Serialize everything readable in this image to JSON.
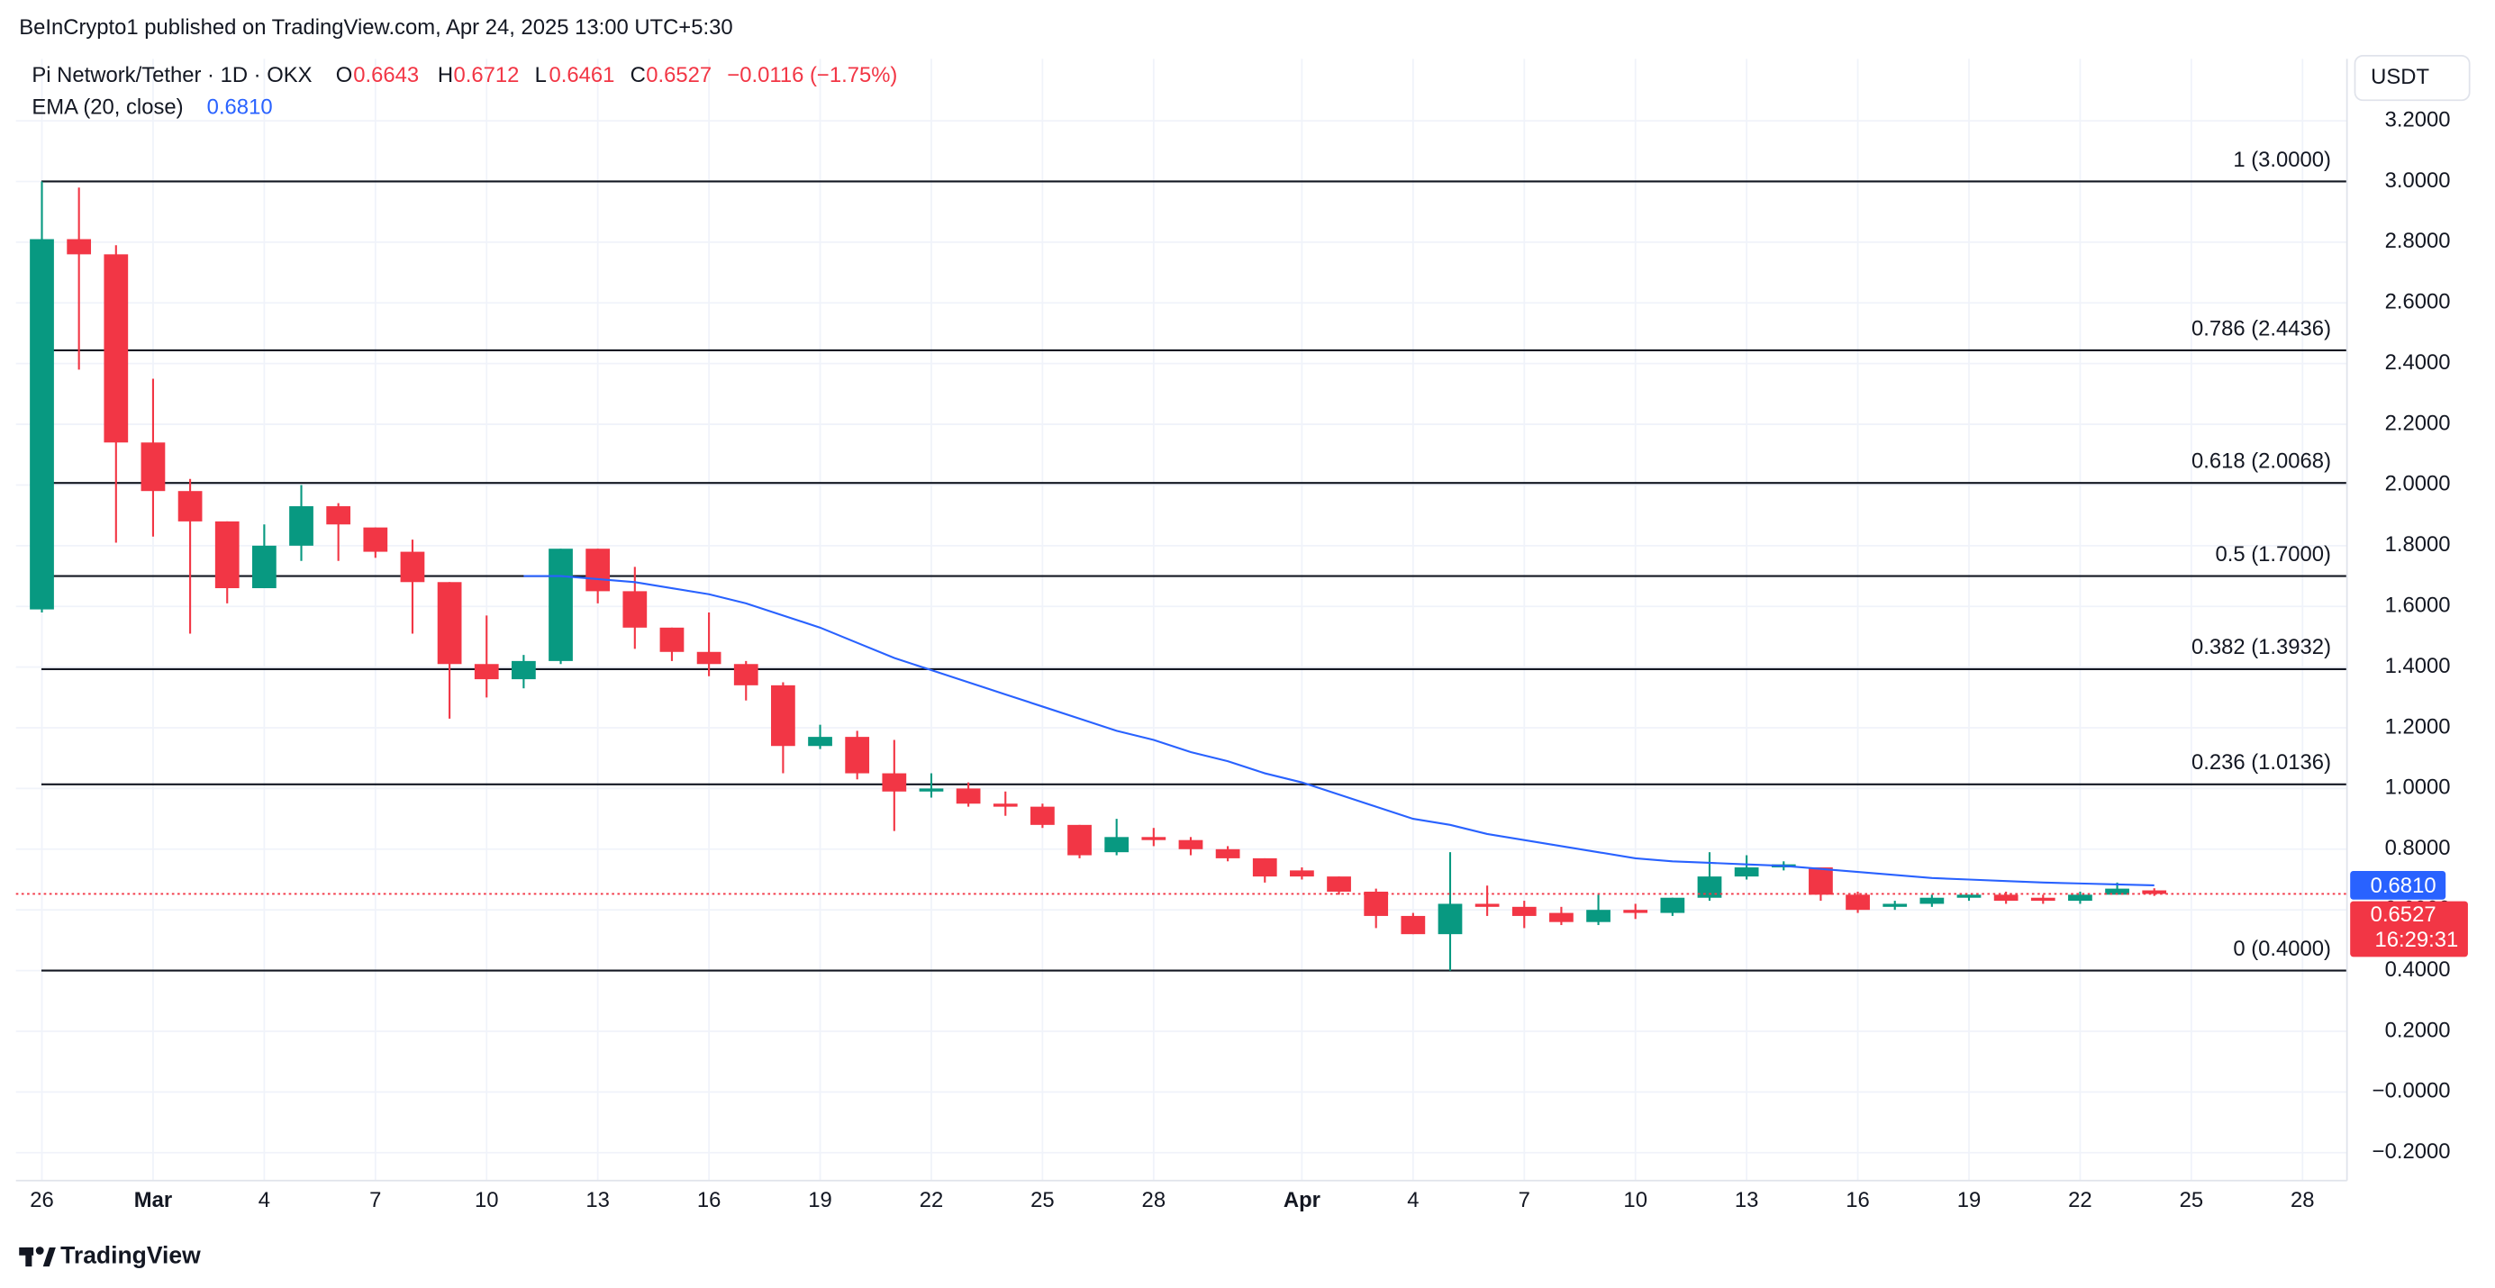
{
  "header": {
    "published": "BeInCrypto1 published on TradingView.com, Apr 24, 2025 13:00 UTC+5:30",
    "symbol": "Pi Network/Tether · 1D · OKX",
    "open_key": "O",
    "open": "0.6643",
    "high_key": "H",
    "high": "0.6712",
    "low_key": "L",
    "low": "0.6461",
    "close_key": "C",
    "close": "0.6527",
    "change": "−0.0116 (−1.75%)",
    "ema_value": "0.6810",
    "currency": "USDT",
    "countdown": "16:29:31",
    "footer": "TradingView"
  },
  "chart_data": {
    "type": "candlestick",
    "x": [
      0,
      1,
      2,
      3,
      4,
      5,
      6,
      7,
      8,
      9,
      10,
      11,
      12,
      13,
      14,
      15,
      16,
      17,
      18,
      19,
      20,
      21,
      22,
      23,
      24,
      25,
      26,
      27,
      28,
      29,
      30,
      31,
      32,
      33,
      34,
      35,
      36,
      37,
      38,
      39,
      40,
      41,
      42,
      43,
      44,
      45,
      46,
      47,
      48,
      49,
      50,
      51,
      52,
      53,
      54,
      55,
      56,
      57
    ],
    "xlim": [
      -0.7,
      62.2
    ],
    "xticks": [
      {
        "value": 0,
        "label": "26"
      },
      {
        "value": 3,
        "label": "Mar"
      },
      {
        "value": 6,
        "label": "4"
      },
      {
        "value": 9,
        "label": "7"
      },
      {
        "value": 12,
        "label": "10"
      },
      {
        "value": 15,
        "label": "13"
      },
      {
        "value": 18,
        "label": "16"
      },
      {
        "value": 21,
        "label": "19"
      },
      {
        "value": 24,
        "label": "22"
      },
      {
        "value": 27,
        "label": "25"
      },
      {
        "value": 30,
        "label": "28"
      },
      {
        "value": 34,
        "label": "Apr"
      },
      {
        "value": 37,
        "label": "4"
      },
      {
        "value": 40,
        "label": "7"
      },
      {
        "value": 43,
        "label": "10"
      },
      {
        "value": 46,
        "label": "13"
      },
      {
        "value": 49,
        "label": "16"
      },
      {
        "value": 52,
        "label": "19"
      },
      {
        "value": 55,
        "label": "22"
      },
      {
        "value": 58,
        "label": "25"
      },
      {
        "value": 61,
        "label": "28"
      }
    ],
    "ylim": [
      -0.292,
      3.404
    ],
    "yticks": [
      {
        "value": 3.2,
        "label": "3.2000"
      },
      {
        "value": 3.0,
        "label": "3.0000"
      },
      {
        "value": 2.8,
        "label": "2.8000"
      },
      {
        "value": 2.6,
        "label": "2.6000"
      },
      {
        "value": 2.4,
        "label": "2.4000"
      },
      {
        "value": 2.2,
        "label": "2.2000"
      },
      {
        "value": 2.0,
        "label": "2.0000"
      },
      {
        "value": 1.8,
        "label": "1.8000"
      },
      {
        "value": 1.6,
        "label": "1.6000"
      },
      {
        "value": 1.4,
        "label": "1.4000"
      },
      {
        "value": 1.2,
        "label": "1.2000"
      },
      {
        "value": 1.0,
        "label": "1.0000"
      },
      {
        "value": 0.8,
        "label": "0.8000"
      },
      {
        "value": 0.6,
        "label": "0.6000"
      },
      {
        "value": 0.4,
        "label": "0.4000"
      },
      {
        "value": 0.2,
        "label": "0.2000"
      },
      {
        "value": 0,
        "label": "−0.0000"
      },
      {
        "value": -0.2,
        "label": "−0.2000"
      }
    ],
    "grid": true,
    "up_color": "#089981",
    "down_color": "#f23645",
    "open": [
      1.59,
      2.81,
      2.76,
      2.14,
      1.98,
      1.88,
      1.66,
      1.8,
      1.93,
      1.86,
      1.78,
      1.68,
      1.41,
      1.36,
      1.42,
      1.79,
      1.65,
      1.53,
      1.45,
      1.41,
      1.34,
      1.14,
      1.17,
      1.05,
      0.99,
      1.0,
      0.95,
      0.94,
      0.88,
      0.79,
      0.84,
      0.83,
      0.8,
      0.77,
      0.73,
      0.71,
      0.66,
      0.58,
      0.52,
      0.62,
      0.61,
      0.59,
      0.56,
      0.6,
      0.59,
      0.64,
      0.71,
      0.74,
      0.74,
      0.65,
      0.61,
      0.62,
      0.64,
      0.65,
      0.64,
      0.63,
      0.65,
      0.6643
    ],
    "high": [
      3.0,
      2.98,
      2.79,
      2.35,
      2.02,
      1.88,
      1.87,
      2.0,
      1.94,
      1.86,
      1.82,
      1.68,
      1.57,
      1.44,
      1.79,
      1.79,
      1.73,
      1.53,
      1.58,
      1.42,
      1.35,
      1.21,
      1.19,
      1.16,
      1.05,
      1.02,
      0.99,
      0.95,
      0.88,
      0.9,
      0.87,
      0.84,
      0.81,
      0.77,
      0.74,
      0.71,
      0.67,
      0.59,
      0.79,
      0.68,
      0.63,
      0.61,
      0.65,
      0.62,
      0.64,
      0.79,
      0.78,
      0.76,
      0.74,
      0.66,
      0.63,
      0.65,
      0.65,
      0.66,
      0.65,
      0.66,
      0.69,
      0.6712
    ],
    "low": [
      1.58,
      2.38,
      1.81,
      1.83,
      1.51,
      1.61,
      1.66,
      1.75,
      1.75,
      1.76,
      1.51,
      1.23,
      1.3,
      1.33,
      1.41,
      1.61,
      1.46,
      1.42,
      1.37,
      1.29,
      1.05,
      1.13,
      1.03,
      0.86,
      0.97,
      0.94,
      0.91,
      0.87,
      0.77,
      0.78,
      0.81,
      0.78,
      0.76,
      0.69,
      0.7,
      0.65,
      0.54,
      0.52,
      0.4,
      0.58,
      0.54,
      0.55,
      0.55,
      0.57,
      0.58,
      0.63,
      0.7,
      0.73,
      0.63,
      0.59,
      0.6,
      0.61,
      0.63,
      0.62,
      0.62,
      0.62,
      0.65,
      0.6461
    ],
    "close": [
      2.81,
      2.76,
      2.14,
      1.98,
      1.88,
      1.66,
      1.8,
      1.93,
      1.87,
      1.78,
      1.68,
      1.41,
      1.36,
      1.42,
      1.79,
      1.65,
      1.53,
      1.45,
      1.41,
      1.34,
      1.14,
      1.17,
      1.05,
      0.99,
      1.0,
      0.95,
      0.94,
      0.88,
      0.78,
      0.84,
      0.83,
      0.8,
      0.77,
      0.71,
      0.71,
      0.66,
      0.58,
      0.52,
      0.62,
      0.61,
      0.58,
      0.56,
      0.6,
      0.59,
      0.64,
      0.71,
      0.74,
      0.75,
      0.65,
      0.6,
      0.62,
      0.64,
      0.65,
      0.63,
      0.63,
      0.65,
      0.67,
      0.6527
    ],
    "series": [
      {
        "name": "EMA (20, close)",
        "color": "#2962ff",
        "values": [
          null,
          null,
          null,
          null,
          null,
          null,
          null,
          null,
          null,
          null,
          null,
          null,
          null,
          1.7,
          1.7,
          1.69,
          1.68,
          1.66,
          1.64,
          1.61,
          1.57,
          1.53,
          1.48,
          1.43,
          1.39,
          1.35,
          1.31,
          1.27,
          1.23,
          1.19,
          1.16,
          1.12,
          1.09,
          1.05,
          1.02,
          0.98,
          0.94,
          0.9,
          0.88,
          0.85,
          0.83,
          0.81,
          0.79,
          0.77,
          0.76,
          0.755,
          0.75,
          0.745,
          0.735,
          0.725,
          0.715,
          0.705,
          0.7,
          0.695,
          0.69,
          0.687,
          0.684,
          0.681
        ]
      }
    ],
    "levels": [
      {
        "value": 3.0,
        "label": "1 (3.0000)"
      },
      {
        "value": 2.4436,
        "label": "0.786 (2.4436)"
      },
      {
        "value": 2.0068,
        "label": "0.618 (2.0068)"
      },
      {
        "value": 1.7,
        "label": "0.5 (1.7000)"
      },
      {
        "value": 1.3932,
        "label": "0.382 (1.3932)"
      },
      {
        "value": 1.0136,
        "label": "0.236 (1.0136)"
      },
      {
        "value": 0.4,
        "label": "0 (0.4000)"
      }
    ]
  }
}
